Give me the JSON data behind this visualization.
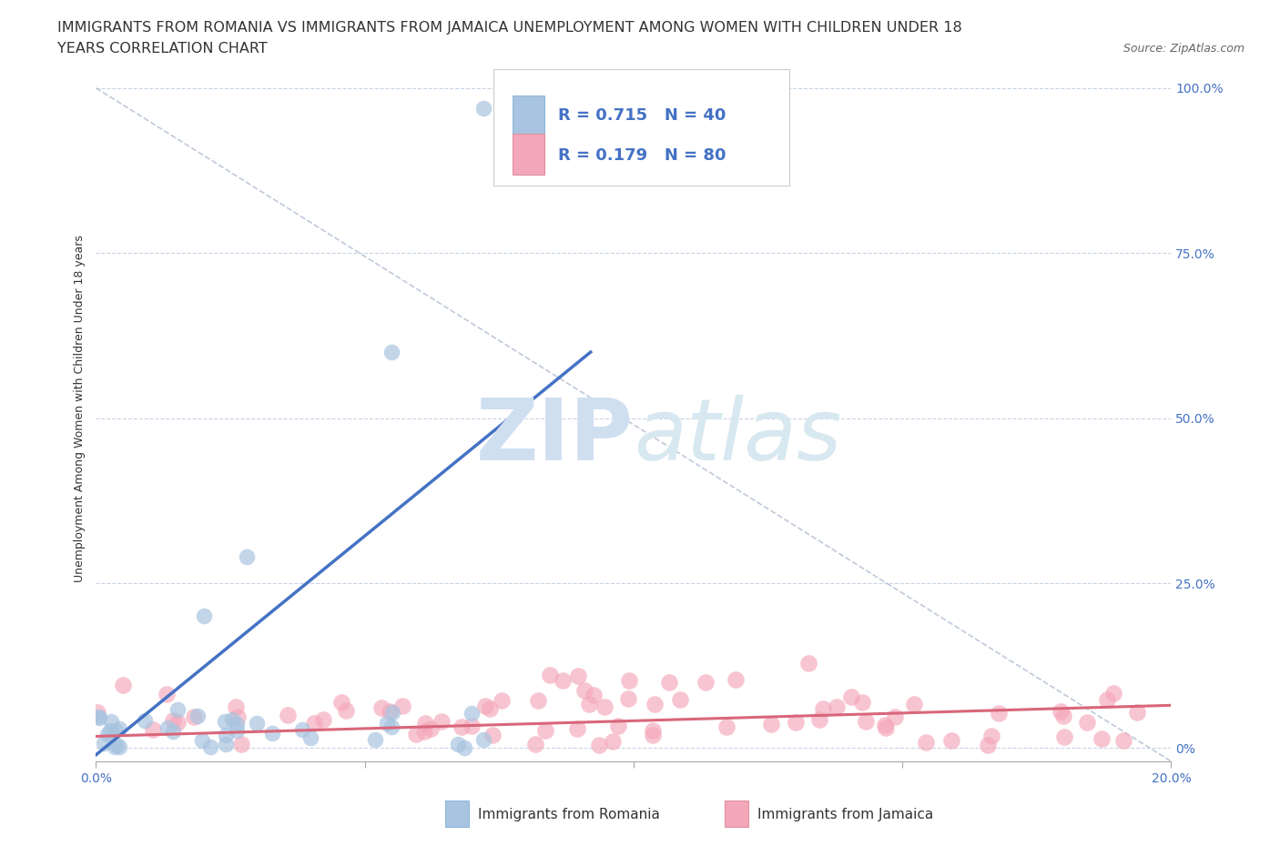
{
  "title_line1": "IMMIGRANTS FROM ROMANIA VS IMMIGRANTS FROM JAMAICA UNEMPLOYMENT AMONG WOMEN WITH CHILDREN UNDER 18",
  "title_line2": "YEARS CORRELATION CHART",
  "source": "Source: ZipAtlas.com",
  "ylabel": "Unemployment Among Women with Children Under 18 years",
  "xlim": [
    0.0,
    0.2
  ],
  "ylim": [
    -0.02,
    1.05
  ],
  "yticks": [
    0.0,
    0.25,
    0.5,
    0.75,
    1.0
  ],
  "ytick_labels_right": [
    "0%",
    "25.0%",
    "50.0%",
    "75.0%",
    "100.0%"
  ],
  "xtick_labels": [
    "0.0%",
    "",
    "",
    "",
    "20.0%"
  ],
  "romania_color": "#a8c4e0",
  "jamaica_color": "#f4a7b9",
  "romania_trend_color": "#4472c4",
  "jamaica_trend_color": "#d9667a",
  "diag_line_color": "#b0bcd0",
  "R_romania": 0.715,
  "N_romania": 40,
  "R_jamaica": 0.179,
  "N_jamaica": 80,
  "watermark_zip": "ZIP",
  "watermark_atlas": "atlas",
  "watermark_color": "#ccdaeb",
  "background_color": "#ffffff",
  "grid_color": "#c8d4e4",
  "legend_box_color_romania": "#a8c4e0",
  "legend_box_color_jamaica": "#f4a7b9",
  "legend_rn_color": "#4472c4",
  "title_fontsize": 11.5,
  "source_fontsize": 9
}
